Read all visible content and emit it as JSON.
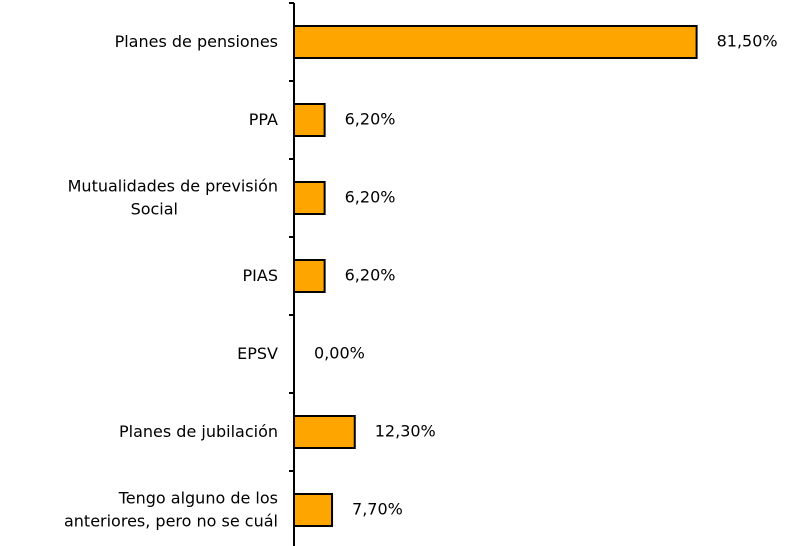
{
  "chart_data": {
    "type": "bar",
    "orientation": "horizontal",
    "categories": [
      "Planes de pensiones",
      "PPA",
      "Mutualidades de previsión\nSocial",
      "PIAS",
      "EPSV",
      "Planes de jubilación",
      "Tengo alguno de los\nanteriores, pero no se cuál"
    ],
    "values": [
      81.5,
      6.2,
      6.2,
      6.2,
      0,
      12.3,
      7.7
    ],
    "value_labels": [
      "81,50%",
      "6,20%",
      "6,20%",
      "6,20%",
      "0,00%",
      "12,30%",
      "7,70%"
    ],
    "color": "#FFA500",
    "xlim": [
      0,
      100
    ]
  }
}
